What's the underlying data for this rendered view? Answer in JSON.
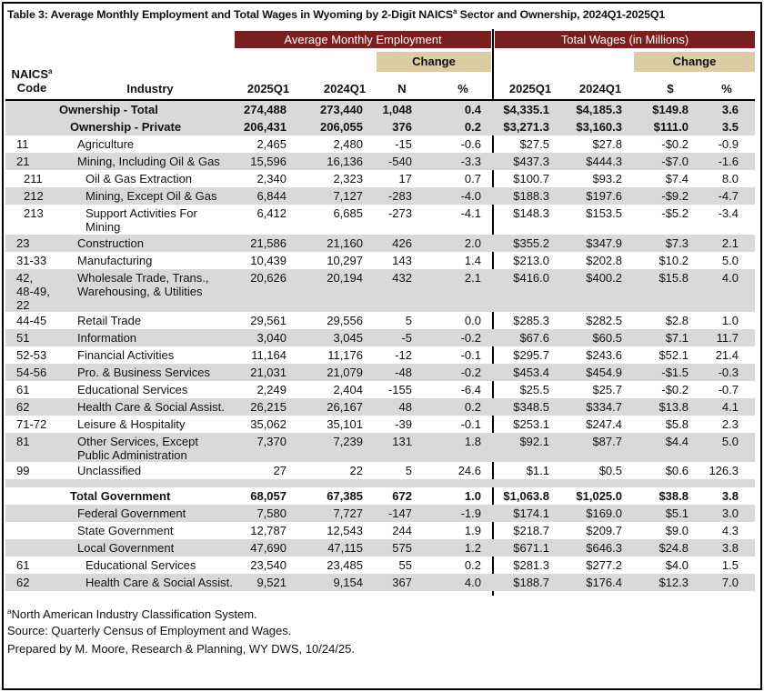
{
  "header": {
    "title": {
      "text": "Table 3: Average Monthly Employment and Total Wages in Wyoming by 2-Digit NAICS",
      "sup": "a",
      "text_end": " Sector and Ownership, 2024Q1-2025Q1"
    },
    "groups": [
      "Average Monthly Employment",
      "Total Wages (in Millions)"
    ],
    "change": [
      "Change",
      "Change"
    ],
    "code_header": {
      "text": "NAICS",
      "sup": "a",
      "line2": "Code"
    },
    "columns": [
      "Industry",
      "2025Q1",
      "2024Q1",
      "N",
      "%",
      "2025Q1",
      "2024Q1",
      "$",
      "%"
    ]
  },
  "table": {
    "sections": [
      {
        "rows": [
          {
            "industry": "Ownership - Total",
            "values": [
              "274,488",
              "273,440",
              "1,048",
              "0.4",
              "$4,335.1",
              "$4,185.3",
              "$149.8",
              "3.6"
            ]
          },
          {
            "industry": "Ownership - Private",
            "values": [
              "206,431",
              "206,055",
              "376",
              "0.2",
              "$3,271.3",
              "$3,160.3",
              "$111.0",
              "3.5"
            ]
          },
          {
            "code": "11",
            "industry": "Agriculture",
            "values": [
              "2,465",
              "2,480",
              "-15",
              "-0.6",
              "$27.5",
              "$27.8",
              "-$0.2",
              "-0.9"
            ]
          },
          {
            "code": "21",
            "industry": "Mining, Including Oil & Gas",
            "values": [
              "15,596",
              "16,136",
              "-540",
              "-3.3",
              "$437.3",
              "$444.3",
              "-$7.0",
              "-1.6"
            ]
          },
          {
            "code": "211",
            "industry": "Oil & Gas Extraction",
            "values": [
              "2,340",
              "2,323",
              "17",
              "0.7",
              "$100.7",
              "$93.2",
              "$7.4",
              "8.0"
            ]
          },
          {
            "code": "212",
            "industry": "Mining, Except Oil & Gas",
            "values": [
              "6,844",
              "7,127",
              "-283",
              "-4.0",
              "$188.3",
              "$197.6",
              "-$9.2",
              "-4.7"
            ]
          },
          {
            "code": "213",
            "industry": "Support Activities For Mining",
            "values": [
              "6,412",
              "6,685",
              "-273",
              "-4.1",
              "$148.3",
              "$153.5",
              "-$5.2",
              "-3.4"
            ]
          },
          {
            "code": "23",
            "industry": "Construction",
            "values": [
              "21,586",
              "21,160",
              "426",
              "2.0",
              "$355.2",
              "$347.9",
              "$7.3",
              "2.1"
            ]
          },
          {
            "code": "31-33",
            "industry": "Manufacturing",
            "values": [
              "10,439",
              "10,297",
              "143",
              "1.4",
              "$213.0",
              "$202.8",
              "$10.2",
              "5.0"
            ]
          },
          {
            "code": "42, 48-49, 22",
            "industry": "Wholesale Trade, Trans., Warehousing, & Utilities",
            "values": [
              "20,626",
              "20,194",
              "432",
              "2.1",
              "$416.0",
              "$400.2",
              "$15.8",
              "4.0"
            ]
          },
          {
            "code": "44-45",
            "industry": "Retail Trade",
            "values": [
              "29,561",
              "29,556",
              "5",
              "0.0",
              "$285.3",
              "$282.5",
              "$2.8",
              "1.0"
            ]
          },
          {
            "code": "51",
            "industry": "Information",
            "values": [
              "3,040",
              "3,045",
              "-5",
              "-0.2",
              "$67.6",
              "$60.5",
              "$7.1",
              "11.7"
            ]
          },
          {
            "code": "52-53",
            "industry": "Financial Activities",
            "values": [
              "11,164",
              "11,176",
              "-12",
              "-0.1",
              "$295.7",
              "$243.6",
              "$52.1",
              "21.4"
            ]
          },
          {
            "code": "54-56",
            "industry": "Pro. & Business Services",
            "values": [
              "21,031",
              "21,079",
              "-48",
              "-0.2",
              "$453.4",
              "$454.9",
              "-$1.5",
              "-0.3"
            ]
          },
          {
            "code": "61",
            "industry": "Educational Services",
            "values": [
              "2,249",
              "2,404",
              "-155",
              "-6.4",
              "$25.5",
              "$25.7",
              "-$0.2",
              "-0.7"
            ]
          },
          {
            "code": "62",
            "industry": "Health Care & Social Assist.",
            "values": [
              "26,215",
              "26,167",
              "48",
              "0.2",
              "$348.5",
              "$334.7",
              "$13.8",
              "4.1"
            ]
          },
          {
            "code": "71-72",
            "industry": "Leisure & Hospitality",
            "values": [
              "35,062",
              "35,101",
              "-39",
              "-0.1",
              "$253.1",
              "$247.4",
              "$5.8",
              "2.3"
            ]
          },
          {
            "code": "81",
            "industry": "Other Services, Except Public Administration",
            "values": [
              "7,370",
              "7,239",
              "131",
              "1.8",
              "$92.1",
              "$87.7",
              "$4.4",
              "5.0"
            ]
          },
          {
            "code": "99",
            "industry": "Unclassified",
            "values": [
              "27",
              "22",
              "5",
              "24.6",
              "$1.1",
              "$0.5",
              "$0.6",
              "126.3"
            ]
          }
        ]
      },
      {
        "rows": [
          {
            "industry": "Total Government",
            "values": [
              "68,057",
              "67,385",
              "672",
              "1.0",
              "$1,063.8",
              "$1,025.0",
              "$38.8",
              "3.8"
            ]
          },
          {
            "industry": "Federal Government",
            "values": [
              "7,580",
              "7,727",
              "-147",
              "-1.9",
              "$174.1",
              "$169.0",
              "$5.1",
              "3.0"
            ]
          },
          {
            "industry": "State Government",
            "values": [
              "12,787",
              "12,543",
              "244",
              "1.9",
              "$218.7",
              "$209.7",
              "$9.0",
              "4.3"
            ]
          },
          {
            "industry": "Local Government",
            "values": [
              "47,690",
              "47,115",
              "575",
              "1.2",
              "$671.1",
              "$646.3",
              "$24.8",
              "3.8"
            ]
          },
          {
            "code": "61",
            "industry": "Educational Services",
            "values": [
              "23,540",
              "23,485",
              "55",
              "0.2",
              "$281.3",
              "$277.2",
              "$4.0",
              "1.5"
            ]
          },
          {
            "code": "62",
            "industry": "Health Care & Social Assist.",
            "values": [
              "9,521",
              "9,154",
              "367",
              "4.0",
              "$188.7",
              "$176.4",
              "$12.3",
              "7.0"
            ]
          }
        ]
      }
    ]
  },
  "footnotes": {
    "sup": "a",
    "definition": "North American Industry Classification System.",
    "source": "Source: Quarterly Census of Employment and Wages.",
    "prepared": "Prepared by M. Moore, Research & Planning, WY DWS, 10/24/25."
  }
}
